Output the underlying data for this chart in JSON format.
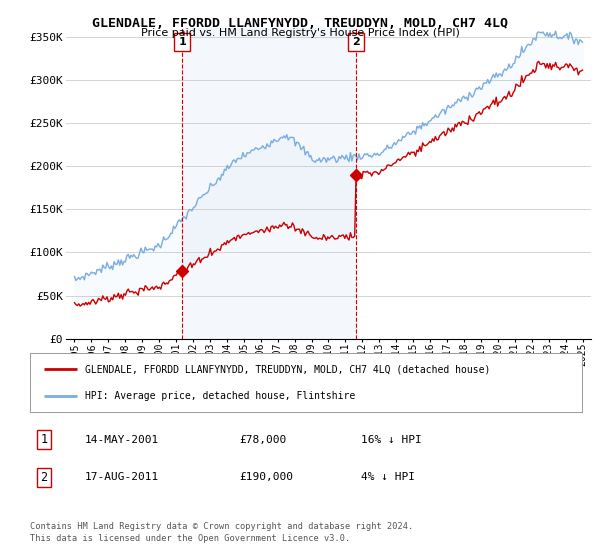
{
  "title": "GLENDALE, FFORDD LLANFYNYDD, TREUDDYN, MOLD, CH7 4LQ",
  "subtitle": "Price paid vs. HM Land Registry's House Price Index (HPI)",
  "ylabel_ticks": [
    "£0",
    "£50K",
    "£100K",
    "£150K",
    "£200K",
    "£250K",
    "£300K",
    "£350K"
  ],
  "ytick_values": [
    0,
    50000,
    100000,
    150000,
    200000,
    250000,
    300000,
    350000
  ],
  "ylim": [
    0,
    360000
  ],
  "xlim_start": 1994.5,
  "xlim_end": 2025.5,
  "background_color": "#ffffff",
  "grid_color": "#cccccc",
  "sale1_date": 2001.36,
  "sale1_price": 78000,
  "sale2_date": 2011.62,
  "sale2_price": 190000,
  "legend_entry1": "GLENDALE, FFORDD LLANFYNYDD, TREUDDYN, MOLD, CH7 4LQ (detached house)",
  "legend_entry2": "HPI: Average price, detached house, Flintshire",
  "footer_line1": "Contains HM Land Registry data © Crown copyright and database right 2024.",
  "footer_line2": "This data is licensed under the Open Government Licence v3.0.",
  "hpi_color": "#7aade0",
  "sale_color": "#cc0000",
  "fill_color": "#ddeeff",
  "vline_color": "#cc0000",
  "table_row1": [
    "1",
    "14-MAY-2001",
    "£78,000",
    "16% ↓ HPI"
  ],
  "table_row2": [
    "2",
    "17-AUG-2011",
    "£190,000",
    "4% ↓ HPI"
  ]
}
